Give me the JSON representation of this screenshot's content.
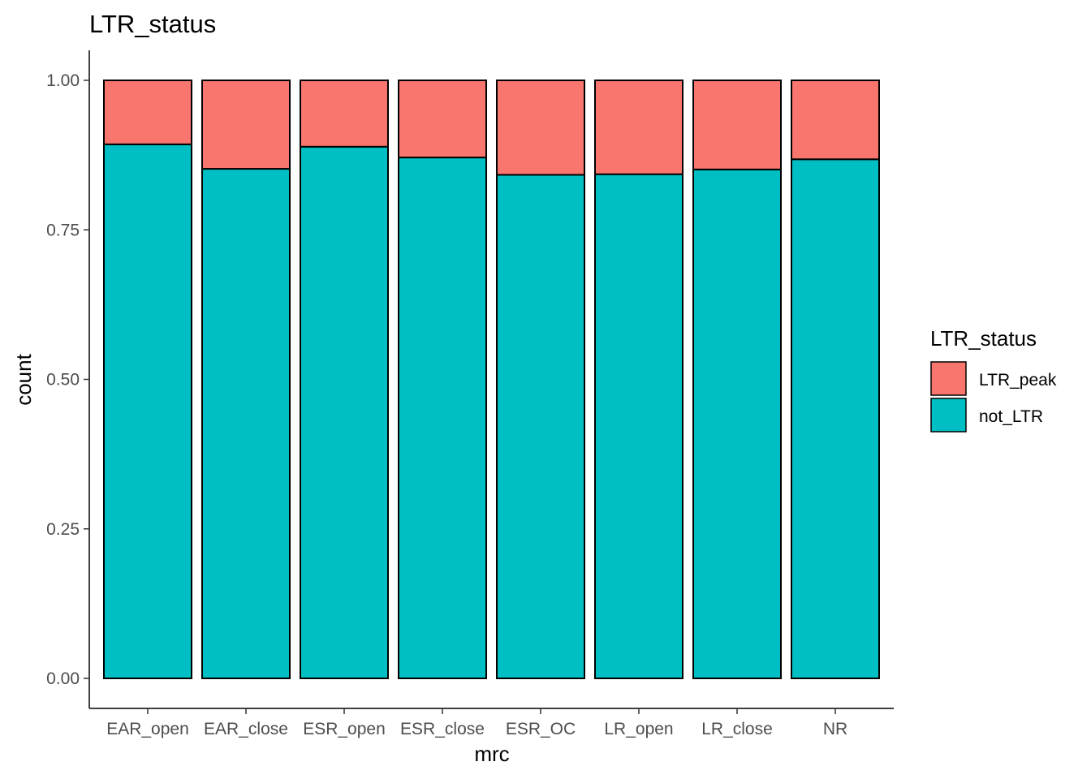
{
  "chart_data": {
    "type": "bar",
    "stacked": true,
    "title": "LTR_status",
    "xlabel": "mrc",
    "ylabel": "count",
    "ylim": [
      0,
      1
    ],
    "yticks": [
      "0.00",
      "0.25",
      "0.50",
      "0.75",
      "1.00"
    ],
    "categories": [
      "EAR_open",
      "EAR_close",
      "ESR_open",
      "ESR_close",
      "ESR_OC",
      "LR_open",
      "LR_close",
      "NR"
    ],
    "series": [
      {
        "name": "not_LTR",
        "color": "#00BFC4",
        "values": [
          0.893,
          0.852,
          0.889,
          0.871,
          0.842,
          0.843,
          0.851,
          0.868
        ]
      },
      {
        "name": "LTR_peak",
        "color": "#F8766D",
        "values": [
          0.107,
          0.148,
          0.111,
          0.129,
          0.158,
          0.157,
          0.149,
          0.132
        ]
      }
    ],
    "legend": {
      "title": "LTR_status",
      "position": "right",
      "entries": [
        "LTR_peak",
        "not_LTR"
      ]
    },
    "grid": false
  }
}
